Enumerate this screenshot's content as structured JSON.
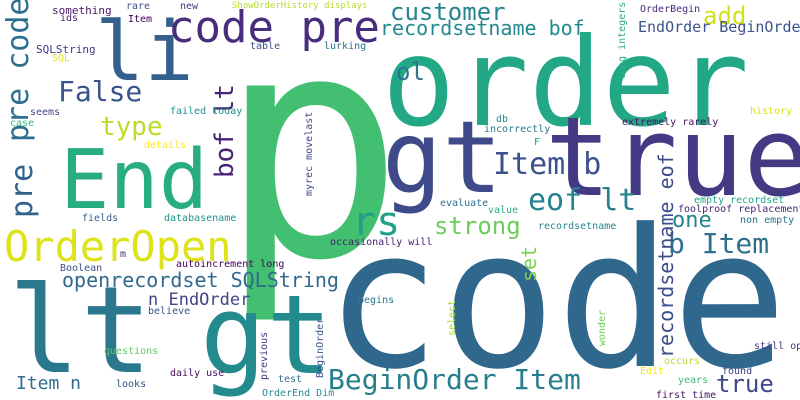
{
  "words": [
    {
      "text": "p",
      "color": "#43bf71"
    },
    {
      "text": "code",
      "color": "#30678d"
    },
    {
      "text": "order",
      "color": "#22a884"
    },
    {
      "text": "true",
      "color": "#443a83"
    },
    {
      "text": "gt",
      "color": "#3e4a89"
    },
    {
      "text": "gt",
      "color": "#238a8d"
    },
    {
      "text": "lt",
      "color": "#2a778e"
    },
    {
      "text": "End",
      "color": "#27ad81"
    },
    {
      "text": "li",
      "color": "#35608d"
    },
    {
      "text": "code pre",
      "color": "#472d7b"
    },
    {
      "text": "pre code",
      "color": "#2e6e8e"
    },
    {
      "text": "OrderOpen",
      "color": "#dde318"
    },
    {
      "text": "pre",
      "color": "#33638d"
    },
    {
      "text": "rs",
      "color": "#1fa187"
    },
    {
      "text": "BeginOrder Item",
      "color": "#277f8e"
    },
    {
      "text": "Item b",
      "color": "#3b518b"
    },
    {
      "text": "False",
      "color": "#3a538b"
    },
    {
      "text": "customer",
      "color": "#25848e"
    },
    {
      "text": "recordsetname bof",
      "color": "#23898e"
    },
    {
      "text": "eof lt",
      "color": "#26828e"
    },
    {
      "text": "openrecordset SQLString",
      "color": "#31688e"
    },
    {
      "text": "b Item",
      "color": "#2d718e"
    },
    {
      "text": "bof lt",
      "color": "#482374"
    },
    {
      "text": "ol",
      "color": "#2c738e"
    },
    {
      "text": "type",
      "color": "#bade28"
    },
    {
      "text": "strong",
      "color": "#6ccd5a"
    },
    {
      "text": "recordsetname eof",
      "color": "#3d4e8a"
    },
    {
      "text": "one",
      "color": "#25838e"
    },
    {
      "text": "add",
      "color": "#d2e21b"
    },
    {
      "text": "EndOrder BeginOrder",
      "color": "#3b528b"
    },
    {
      "text": "n EndOrder",
      "color": "#414487"
    },
    {
      "text": "true",
      "color": "#3f4889"
    },
    {
      "text": "set",
      "color": "#7ad151"
    },
    {
      "text": "Item n",
      "color": "#2f6c8e"
    },
    {
      "text": "something",
      "color": "#48186a"
    },
    {
      "text": "ids",
      "color": "#481f70"
    },
    {
      "text": "SQLString",
      "color": "#443983"
    },
    {
      "text": "SQL",
      "color": "#e2e418"
    },
    {
      "text": "rare",
      "color": "#3b528b"
    },
    {
      "text": "Item",
      "color": "#440154"
    },
    {
      "text": "new",
      "color": "#46337e"
    },
    {
      "text": "ShowOrderHistory displays",
      "color": "#b5de2b"
    },
    {
      "text": "table",
      "color": "#3d4d8a"
    },
    {
      "text": "lurking",
      "color": "#2c728e"
    },
    {
      "text": "long integers",
      "color": "#29af7f"
    },
    {
      "text": "OrderBegin",
      "color": "#482878"
    },
    {
      "text": "history",
      "color": "#d8e219"
    },
    {
      "text": "extremely rarely",
      "color": "#471365"
    },
    {
      "text": "failed today",
      "color": "#21918c"
    },
    {
      "text": "seems",
      "color": "#3f4788"
    },
    {
      "text": "case",
      "color": "#35b779"
    },
    {
      "text": "details",
      "color": "#fde725"
    },
    {
      "text": "myrec movelast",
      "color": "#3e4989"
    },
    {
      "text": "incorrectly",
      "color": "#2a788e"
    },
    {
      "text": "db",
      "color": "#26828e"
    },
    {
      "text": "F",
      "color": "#1f9e89"
    },
    {
      "text": "empty recordset",
      "color": "#20a486"
    },
    {
      "text": "foolproof replacement",
      "color": "#482576"
    },
    {
      "text": "non empty",
      "color": "#2d718e"
    },
    {
      "text": "evaluate",
      "color": "#2d708e"
    },
    {
      "text": "value",
      "color": "#25ac82"
    },
    {
      "text": "recordsetname",
      "color": "#25858e"
    },
    {
      "text": "fields",
      "color": "#355f8d"
    },
    {
      "text": "databasename",
      "color": "#21918c"
    },
    {
      "text": "occasionally will",
      "color": "#482173"
    },
    {
      "text": "m",
      "color": "#46307e"
    },
    {
      "text": "autoincrement long",
      "color": "#440154"
    },
    {
      "text": "Boolean",
      "color": "#3b528b"
    },
    {
      "text": "believe",
      "color": "#3a548c"
    },
    {
      "text": "begins",
      "color": "#2a768e"
    },
    {
      "text": "select",
      "color": "#a8db34"
    },
    {
      "text": "wonder",
      "color": "#6ece58"
    },
    {
      "text": "still open",
      "color": "#453882"
    },
    {
      "text": "questions",
      "color": "#5ec962"
    },
    {
      "text": "daily use",
      "color": "#460a5d"
    },
    {
      "text": "previous",
      "color": "#463480"
    },
    {
      "text": "test",
      "color": "#2d708e"
    },
    {
      "text": "BeginOrder",
      "color": "#39568c"
    },
    {
      "text": "occurs",
      "color": "#b2dd2d"
    },
    {
      "text": "Edit",
      "color": "#f1e51d"
    },
    {
      "text": "years",
      "color": "#3aba76"
    },
    {
      "text": "found",
      "color": "#433e85"
    },
    {
      "text": "looks",
      "color": "#3c508b"
    },
    {
      "text": "OrderEnd Dim",
      "color": "#238a8d"
    },
    {
      "text": "first time",
      "color": "#471164"
    }
  ]
}
